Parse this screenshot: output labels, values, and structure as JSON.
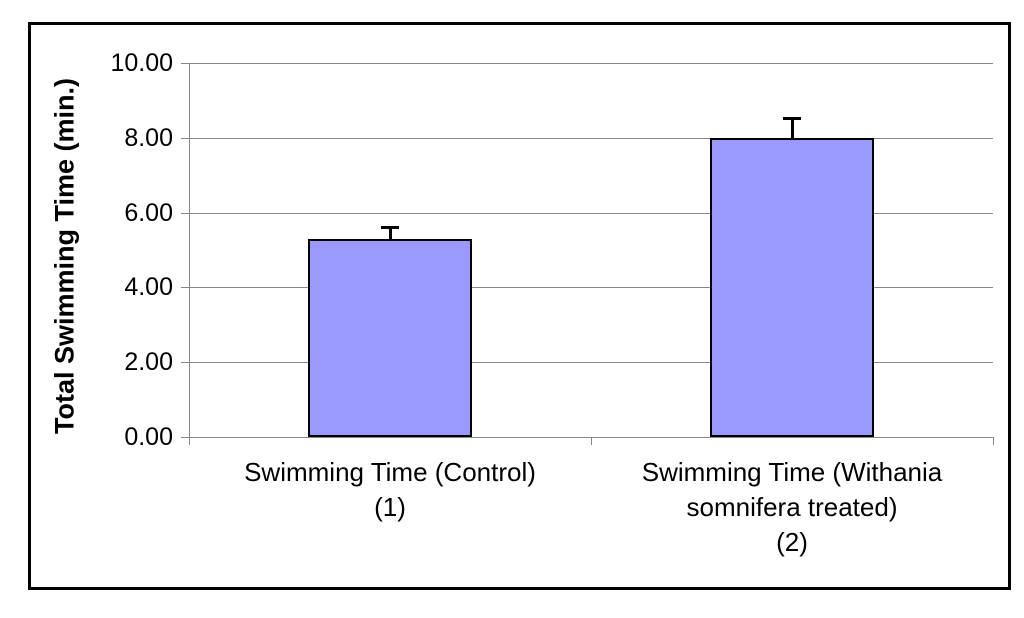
{
  "window": {
    "background_color": "#ffffff",
    "frame_border_color": "#000000"
  },
  "chart_data": {
    "type": "bar",
    "title": "",
    "xlabel": "",
    "ylabel": "Total Swimming Time (min.)",
    "categories": [
      "Swimming Time (Control)\n(1)",
      "Swimming Time (Withania\nsomnifera treated)\n(2)"
    ],
    "values": [
      5.3,
      8.0
    ],
    "errors_plus": [
      0.3,
      0.5
    ],
    "ylim": [
      0,
      10
    ],
    "yticks": [
      {
        "value": 0,
        "label": "0.00"
      },
      {
        "value": 2,
        "label": "2.00"
      },
      {
        "value": 4,
        "label": "4.00"
      },
      {
        "value": 6,
        "label": "6.00"
      },
      {
        "value": 8,
        "label": "8.00"
      },
      {
        "value": 10,
        "label": "10.00"
      }
    ],
    "grid": true,
    "legend": false,
    "bar_fill_color": "#9999ff",
    "bar_border_color": "#000000",
    "gridline_color": "#878787",
    "axis_color": "#878787",
    "error_bar_color": "#000000"
  }
}
